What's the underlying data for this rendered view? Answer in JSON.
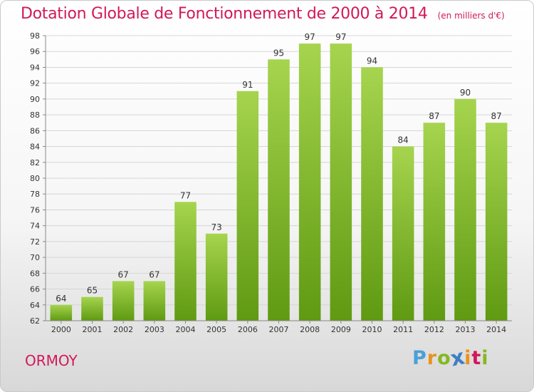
{
  "header": {
    "title": "Dotation Globale de Fonctionnement de 2000 à 2014",
    "unit": "(en milliers d'€)"
  },
  "footer": {
    "commune": "ORMOY",
    "logo_letters": [
      "P",
      "r",
      "o",
      "x",
      "i",
      "t",
      "i"
    ],
    "logo_colors": [
      "#4aa0d8",
      "#e8931c",
      "#84b820",
      "#3d7fc4",
      "#e8931c",
      "#d2185a",
      "#84b820"
    ]
  },
  "colors": {
    "title": "#d2185a",
    "bar_top": "#a6d44e",
    "bar_bottom": "#5f9a12",
    "grid": "#d6d6d6"
  },
  "chart_data": {
    "type": "bar",
    "title": "Dotation Globale de Fonctionnement de 2000 à 2014",
    "subtitle": "(en milliers d'€)",
    "xlabel": "",
    "ylabel": "",
    "categories": [
      "2000",
      "2001",
      "2002",
      "2003",
      "2004",
      "2005",
      "2006",
      "2007",
      "2008",
      "2009",
      "2010",
      "2011",
      "2012",
      "2013",
      "2014"
    ],
    "values": [
      64,
      65,
      67,
      67,
      77,
      73,
      91,
      95,
      97,
      97,
      94,
      84,
      87,
      90,
      87
    ],
    "ylim": [
      62,
      98
    ],
    "yticks": [
      62,
      64,
      66,
      68,
      70,
      72,
      74,
      76,
      78,
      80,
      82,
      84,
      86,
      88,
      90,
      92,
      94,
      96,
      98
    ],
    "grid": true,
    "legend": "none"
  }
}
